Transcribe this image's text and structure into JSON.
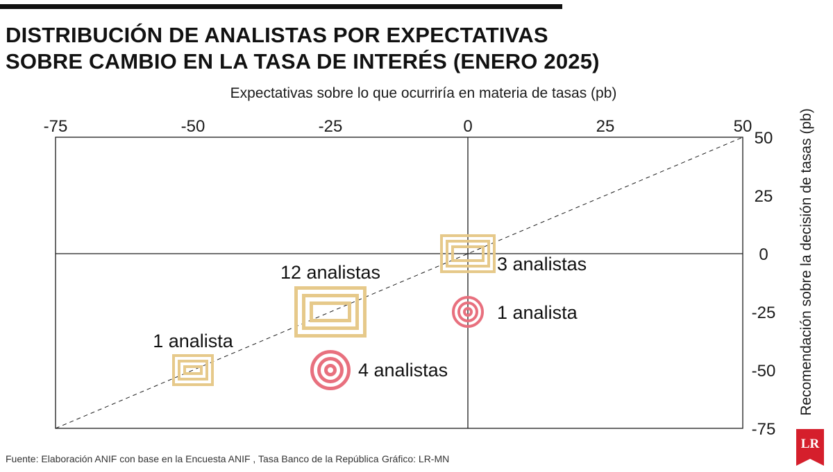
{
  "header": {
    "title_line1": "DISTRIBUCIÓN DE ANALISTAS POR EXPECTATIVAS",
    "title_line2": "SOBRE CAMBIO EN LA TASA DE INTERÉS (ENERO 2025)"
  },
  "footer": {
    "source": "Fuente: Elaboración ANIF con base en la Encuesta ANIF , Tasa Banco de la República",
    "credit": "Gráfico: LR-MN",
    "logo_text": "LR"
  },
  "colors": {
    "gold": "#e6c98a",
    "pink": "#e8707e",
    "logo_red": "#d51f2c",
    "axis": "#1a1a1a"
  },
  "chart_data": {
    "type": "scatter",
    "xlabel": "Expectativas sobre lo que ocurriría en materia de tasas (pb)",
    "ylabel": "Recomendación sobre la decisión de tasas (pb)",
    "xlim": [
      -75,
      50
    ],
    "ylim": [
      -75,
      50
    ],
    "xticks": [
      -75,
      -50,
      -25,
      0,
      25,
      50
    ],
    "yticks": [
      50,
      25,
      0,
      -25,
      -50,
      -75
    ],
    "reference_line": "y = x (dashed)",
    "points": [
      {
        "x": -50,
        "y": -50,
        "marker": "square",
        "color": "gold",
        "count": 1,
        "label": "1 analista"
      },
      {
        "x": -25,
        "y": -25,
        "marker": "square",
        "color": "gold",
        "count": 12,
        "label": "12 analistas"
      },
      {
        "x": 0,
        "y": 0,
        "marker": "square",
        "color": "gold",
        "count": 3,
        "label": "3 analistas"
      },
      {
        "x": -25,
        "y": -50,
        "marker": "circle",
        "color": "pink",
        "count": 4,
        "label": "4 analistas"
      },
      {
        "x": 0,
        "y": -25,
        "marker": "circle",
        "color": "pink",
        "count": 1,
        "label": "1 analista"
      }
    ]
  }
}
